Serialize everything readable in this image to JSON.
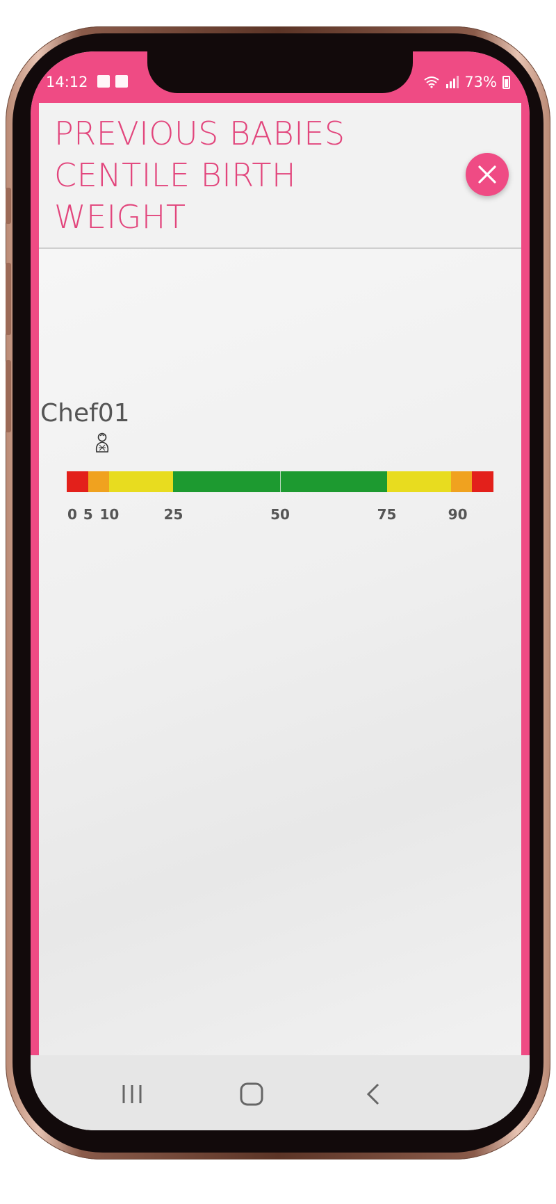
{
  "status_bar": {
    "time": "14:12",
    "battery": "73%"
  },
  "header": {
    "title": "PREVIOUS BABIES CENTILE BIRTH WEIGHT",
    "close_icon": "close-icon"
  },
  "baby": {
    "name": "Chef01",
    "icon": "baby-icon"
  },
  "centile_chart": {
    "segments": [
      {
        "from": 0,
        "to": 5,
        "color": "#e3201b"
      },
      {
        "from": 5,
        "to": 10,
        "color": "#f0a21f"
      },
      {
        "from": 10,
        "to": 25,
        "color": "#e8dc1f"
      },
      {
        "from": 25,
        "to": 50,
        "color": "#1d9a30"
      },
      {
        "from": 50,
        "to": 75,
        "color": "#1d9a30"
      },
      {
        "from": 75,
        "to": 90,
        "color": "#e8dc1f"
      },
      {
        "from": 90,
        "to": 95,
        "color": "#f0a21f"
      },
      {
        "from": 95,
        "to": 100,
        "color": "#e3201b"
      }
    ],
    "tick_labels": [
      "0",
      "5",
      "10",
      "25",
      "50",
      "75",
      "90"
    ],
    "tick_values": [
      0,
      5,
      10,
      25,
      50,
      75,
      90
    ],
    "marker_centile": 5
  },
  "colors": {
    "accent": "#ef4b84",
    "title": "#e2457c"
  }
}
